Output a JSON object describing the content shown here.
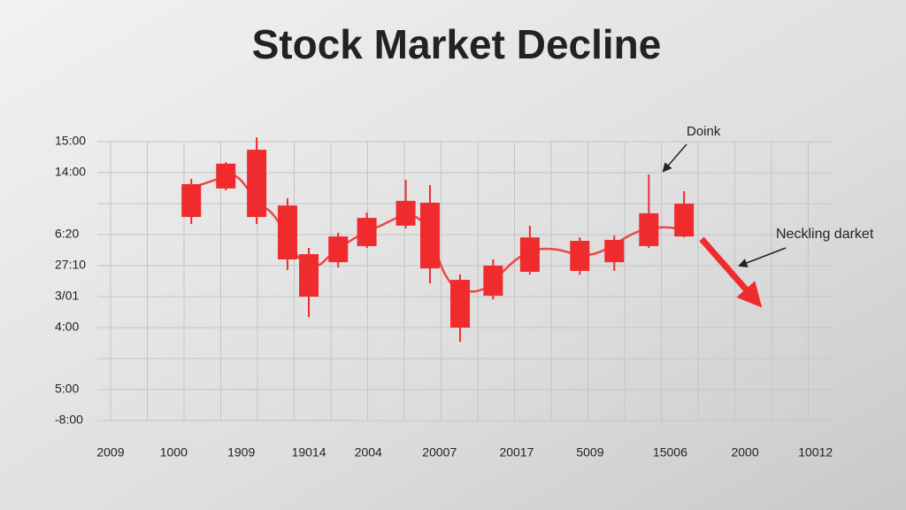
{
  "chart_data": {
    "type": "candlestick",
    "title": "Stock Market Decline",
    "annotations": [
      "Doink",
      "Neckling darket"
    ],
    "color": "#ef2b2d",
    "grid": true,
    "xlim": [
      0,
      100
    ],
    "xticks": [
      {
        "value": 1.8,
        "label": "2009"
      },
      {
        "value": 10.4,
        "label": "1000"
      },
      {
        "value": 19.6,
        "label": "1909"
      },
      {
        "value": 28.8,
        "label": "19014"
      },
      {
        "value": 36.9,
        "label": "2004"
      },
      {
        "value": 46.6,
        "label": "20007"
      },
      {
        "value": 57.1,
        "label": "20017"
      },
      {
        "value": 67.1,
        "label": "5009"
      },
      {
        "value": 78,
        "label": "15006"
      },
      {
        "value": 88.2,
        "label": "2000"
      },
      {
        "value": 97.8,
        "label": "10012"
      }
    ],
    "ylim": [
      0,
      9
    ],
    "yticks": [
      {
        "value": 9,
        "label": "15:00"
      },
      {
        "value": 8,
        "label": "14:00"
      },
      {
        "value": 7,
        "label": null
      },
      {
        "value": 6,
        "label": "6:20"
      },
      {
        "value": 5,
        "label": "27:10"
      },
      {
        "value": 4,
        "label": "3/01"
      },
      {
        "value": 3,
        "label": "4:00"
      },
      {
        "value": 2,
        "label": null
      },
      {
        "value": 1,
        "label": "5:00"
      },
      {
        "value": 0,
        "label": "-8:00"
      }
    ],
    "x": [
      12.8,
      17.5,
      21.7,
      25.9,
      28.8,
      32.8,
      36.7,
      42,
      45.3,
      49.4,
      53.9,
      58.9,
      65.7,
      70.4,
      75.1,
      79.9
    ],
    "open": [
      7.63,
      8.29,
      8.74,
      6.94,
      5.37,
      5.94,
      6.54,
      7.09,
      7.03,
      4.54,
      5.0,
      5.91,
      5.8,
      5.83,
      6.69,
      7.0
    ],
    "close": [
      6.57,
      7.49,
      6.57,
      5.2,
      4.0,
      5.11,
      5.63,
      6.29,
      4.91,
      3.0,
      4.03,
      4.8,
      4.83,
      5.11,
      5.63,
      5.94
    ],
    "high": [
      7.8,
      8.34,
      9.14,
      7.17,
      5.57,
      6.06,
      6.71,
      7.77,
      7.6,
      4.71,
      5.2,
      6.29,
      5.91,
      5.97,
      7.94,
      7.4
    ],
    "low": [
      6.34,
      7.43,
      6.34,
      4.86,
      3.34,
      4.94,
      5.57,
      6.2,
      4.43,
      2.54,
      3.91,
      4.71,
      4.71,
      4.83,
      5.57,
      5.91
    ]
  }
}
